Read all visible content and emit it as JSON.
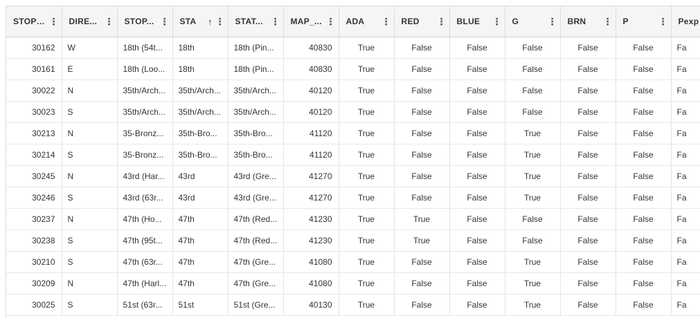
{
  "columns": [
    {
      "label": "STOP_...",
      "align": "num",
      "sorted": false
    },
    {
      "label": "DIRE...",
      "align": "lft",
      "sorted": false
    },
    {
      "label": "STOP...",
      "align": "lft",
      "sorted": false
    },
    {
      "label": "STA",
      "align": "lft",
      "sorted": true,
      "sort_icon": "↑"
    },
    {
      "label": "STAT...",
      "align": "lft",
      "sorted": false
    },
    {
      "label": "MAP_...",
      "align": "num",
      "sorted": false
    },
    {
      "label": "ADA",
      "align": "ctr",
      "sorted": false
    },
    {
      "label": "RED",
      "align": "ctr",
      "sorted": false
    },
    {
      "label": "BLUE",
      "align": "ctr",
      "sorted": false
    },
    {
      "label": "G",
      "align": "ctr",
      "sorted": false
    },
    {
      "label": "BRN",
      "align": "ctr",
      "sorted": false
    },
    {
      "label": "P",
      "align": "ctr",
      "sorted": false
    },
    {
      "label": "Pexp",
      "align": "lft",
      "sorted": false
    }
  ],
  "menu_icon": "⋮",
  "rows": [
    [
      "30162",
      "W",
      "18th (54t...",
      "18th",
      "18th (Pin...",
      "40830",
      "True",
      "False",
      "False",
      "False",
      "False",
      "False",
      "Fa"
    ],
    [
      "30161",
      "E",
      "18th (Loo...",
      "18th",
      "18th (Pin...",
      "40830",
      "True",
      "False",
      "False",
      "False",
      "False",
      "False",
      "Fa"
    ],
    [
      "30022",
      "N",
      "35th/Arch...",
      "35th/Arch...",
      "35th/Arch...",
      "40120",
      "True",
      "False",
      "False",
      "False",
      "False",
      "False",
      "Fa"
    ],
    [
      "30023",
      "S",
      "35th/Arch...",
      "35th/Arch...",
      "35th/Arch...",
      "40120",
      "True",
      "False",
      "False",
      "False",
      "False",
      "False",
      "Fa"
    ],
    [
      "30213",
      "N",
      "35-Bronz...",
      "35th-Bro...",
      "35th-Bro...",
      "41120",
      "True",
      "False",
      "False",
      "True",
      "False",
      "False",
      "Fa"
    ],
    [
      "30214",
      "S",
      "35-Bronz...",
      "35th-Bro...",
      "35th-Bro...",
      "41120",
      "True",
      "False",
      "False",
      "True",
      "False",
      "False",
      "Fa"
    ],
    [
      "30245",
      "N",
      "43rd (Har...",
      "43rd",
      "43rd (Gre...",
      "41270",
      "True",
      "False",
      "False",
      "True",
      "False",
      "False",
      "Fa"
    ],
    [
      "30246",
      "S",
      "43rd (63r...",
      "43rd",
      "43rd (Gre...",
      "41270",
      "True",
      "False",
      "False",
      "True",
      "False",
      "False",
      "Fa"
    ],
    [
      "30237",
      "N",
      "47th (Ho...",
      "47th",
      "47th (Red...",
      "41230",
      "True",
      "True",
      "False",
      "False",
      "False",
      "False",
      "Fa"
    ],
    [
      "30238",
      "S",
      "47th (95t...",
      "47th",
      "47th (Red...",
      "41230",
      "True",
      "True",
      "False",
      "False",
      "False",
      "False",
      "Fa"
    ],
    [
      "30210",
      "S",
      "47th (63r...",
      "47th",
      "47th (Gre...",
      "41080",
      "True",
      "False",
      "False",
      "True",
      "False",
      "False",
      "Fa"
    ],
    [
      "30209",
      "N",
      "47th (Harl...",
      "47th",
      "47th (Gre...",
      "41080",
      "True",
      "False",
      "False",
      "True",
      "False",
      "False",
      "Fa"
    ],
    [
      "30025",
      "S",
      "51st (63r...",
      "51st",
      "51st (Gre...",
      "40130",
      "True",
      "False",
      "False",
      "True",
      "False",
      "False",
      "Fa"
    ]
  ]
}
